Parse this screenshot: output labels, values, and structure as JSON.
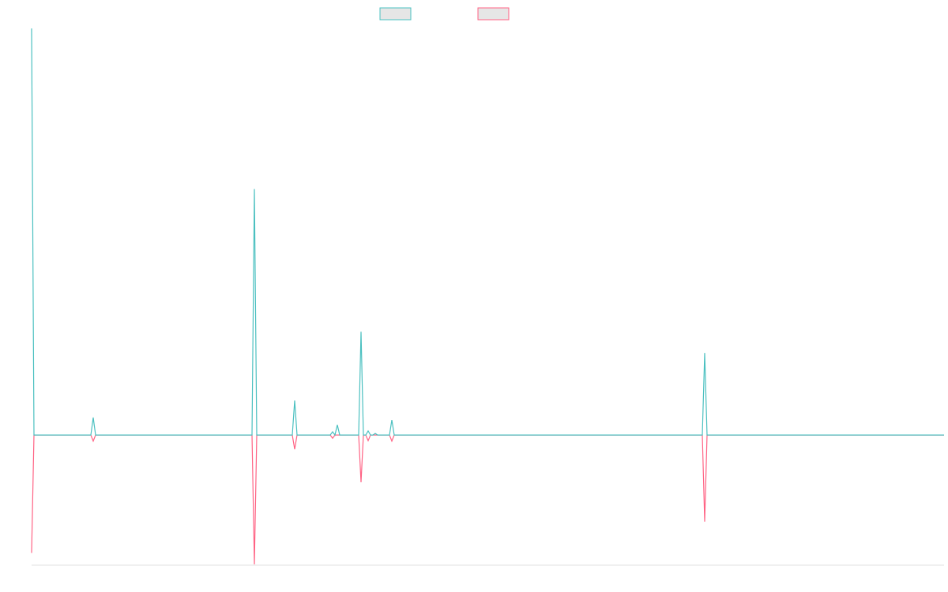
{
  "chart_data": {
    "type": "line",
    "x": [
      0,
      1,
      25,
      26,
      27,
      93,
      94,
      95,
      110,
      111,
      112,
      126,
      127,
      128,
      129,
      130,
      138,
      139,
      140,
      141,
      142,
      143,
      144,
      145,
      146,
      151,
      152,
      153,
      283,
      284,
      285,
      385
    ],
    "xlim": [
      0,
      385
    ],
    "ylim": [
      -3.2,
      10
    ],
    "series": [
      {
        "color": "#4bc0c0",
        "values": [
          10,
          0,
          0,
          0.43,
          0,
          0,
          6.05,
          0,
          0,
          0.85,
          0,
          0,
          0.08,
          0,
          0.25,
          0,
          0,
          2.54,
          0,
          0,
          0.1,
          0,
          0,
          0.04,
          0,
          0,
          0.37,
          0,
          0,
          2.02,
          0,
          0
        ]
      },
      {
        "color": "#ff6384",
        "values": [
          -2.9,
          0,
          0,
          -0.15,
          0,
          0,
          -3.18,
          0,
          0,
          -0.35,
          0,
          0,
          -0.08,
          0,
          0,
          0,
          0,
          -1.16,
          0,
          0,
          -0.14,
          0,
          0,
          0,
          0,
          0,
          -0.15,
          0,
          0,
          -2.13,
          0,
          0
        ]
      }
    ]
  }
}
